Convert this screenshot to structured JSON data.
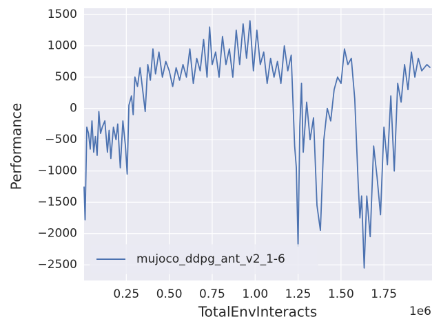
{
  "chart_data": {
    "type": "line",
    "xlabel": "TotalEnvInteracts",
    "ylabel": "Performance",
    "x_offset_label": "1e6",
    "x": [
      4000,
      10000,
      20000,
      30000,
      40000,
      50000,
      60000,
      70000,
      80000,
      90000,
      100000,
      110000,
      125000,
      140000,
      150000,
      160000,
      175000,
      190000,
      200000,
      215000,
      230000,
      245000,
      255000,
      265000,
      280000,
      290000,
      300000,
      315000,
      330000,
      345000,
      360000,
      375000,
      390000,
      405000,
      420000,
      440000,
      460000,
      480000,
      500000,
      520000,
      540000,
      560000,
      580000,
      600000,
      620000,
      640000,
      660000,
      680000,
      700000,
      720000,
      735000,
      750000,
      770000,
      790000,
      810000,
      830000,
      850000,
      870000,
      890000,
      910000,
      930000,
      950000,
      970000,
      990000,
      1010000,
      1030000,
      1050000,
      1070000,
      1090000,
      1110000,
      1130000,
      1150000,
      1170000,
      1190000,
      1210000,
      1230000,
      1240000,
      1250000,
      1260000,
      1270000,
      1280000,
      1300000,
      1320000,
      1340000,
      1360000,
      1380000,
      1400000,
      1420000,
      1440000,
      1460000,
      1480000,
      1500000,
      1520000,
      1540000,
      1560000,
      1580000,
      1600000,
      1610000,
      1620000,
      1635000,
      1650000,
      1670000,
      1690000,
      1710000,
      1730000,
      1750000,
      1770000,
      1790000,
      1810000,
      1830000,
      1850000,
      1870000,
      1890000,
      1910000,
      1930000,
      1950000,
      1970000,
      2000000,
      2020000
    ],
    "series": [
      {
        "name": "mujoco_ddpg_ant_v2_1-6",
        "color": "#4c72b0",
        "values": [
          -1250,
          -1780,
          -300,
          -400,
          -650,
          -200,
          -700,
          -450,
          -750,
          -50,
          -400,
          -300,
          -200,
          -700,
          -350,
          -800,
          -300,
          -500,
          -250,
          -950,
          -200,
          -600,
          -1050,
          50,
          200,
          -100,
          500,
          350,
          650,
          300,
          -50,
          700,
          450,
          950,
          550,
          900,
          500,
          750,
          600,
          350,
          650,
          450,
          700,
          500,
          950,
          400,
          800,
          600,
          1100,
          500,
          1300,
          700,
          900,
          500,
          1150,
          700,
          950,
          500,
          1250,
          700,
          1350,
          800,
          1400,
          600,
          1250,
          700,
          900,
          400,
          800,
          500,
          750,
          400,
          1000,
          600,
          850,
          -600,
          -950,
          -2200,
          -300,
          400,
          -700,
          100,
          -500,
          -150,
          -1550,
          -1950,
          -500,
          0,
          -200,
          300,
          500,
          400,
          950,
          700,
          800,
          150,
          -1200,
          -1750,
          -1400,
          -2550,
          -1400,
          -2050,
          -600,
          -1100,
          -1700,
          -300,
          -900,
          200,
          -1000,
          400,
          100,
          700,
          300,
          900,
          500,
          800,
          600,
          700,
          650
        ]
      }
    ],
    "xlim": [
      4000,
      2030000
    ],
    "ylim": [
      -2750,
      1600
    ],
    "xticks": [
      {
        "value": 250000,
        "label": "0.25"
      },
      {
        "value": 500000,
        "label": "0.50"
      },
      {
        "value": 750000,
        "label": "0.75"
      },
      {
        "value": 1000000,
        "label": "1.00"
      },
      {
        "value": 1250000,
        "label": "1.25"
      },
      {
        "value": 1500000,
        "label": "1.50"
      },
      {
        "value": 1750000,
        "label": "1.75"
      }
    ],
    "yticks": [
      {
        "value": -2500,
        "label": "−2500"
      },
      {
        "value": -2000,
        "label": "−2000"
      },
      {
        "value": -1500,
        "label": "−1500"
      },
      {
        "value": -1000,
        "label": "−1000"
      },
      {
        "value": -500,
        "label": "−500"
      },
      0,
      500,
      1000,
      1500
    ],
    "grid": true,
    "legend": "lower left"
  }
}
